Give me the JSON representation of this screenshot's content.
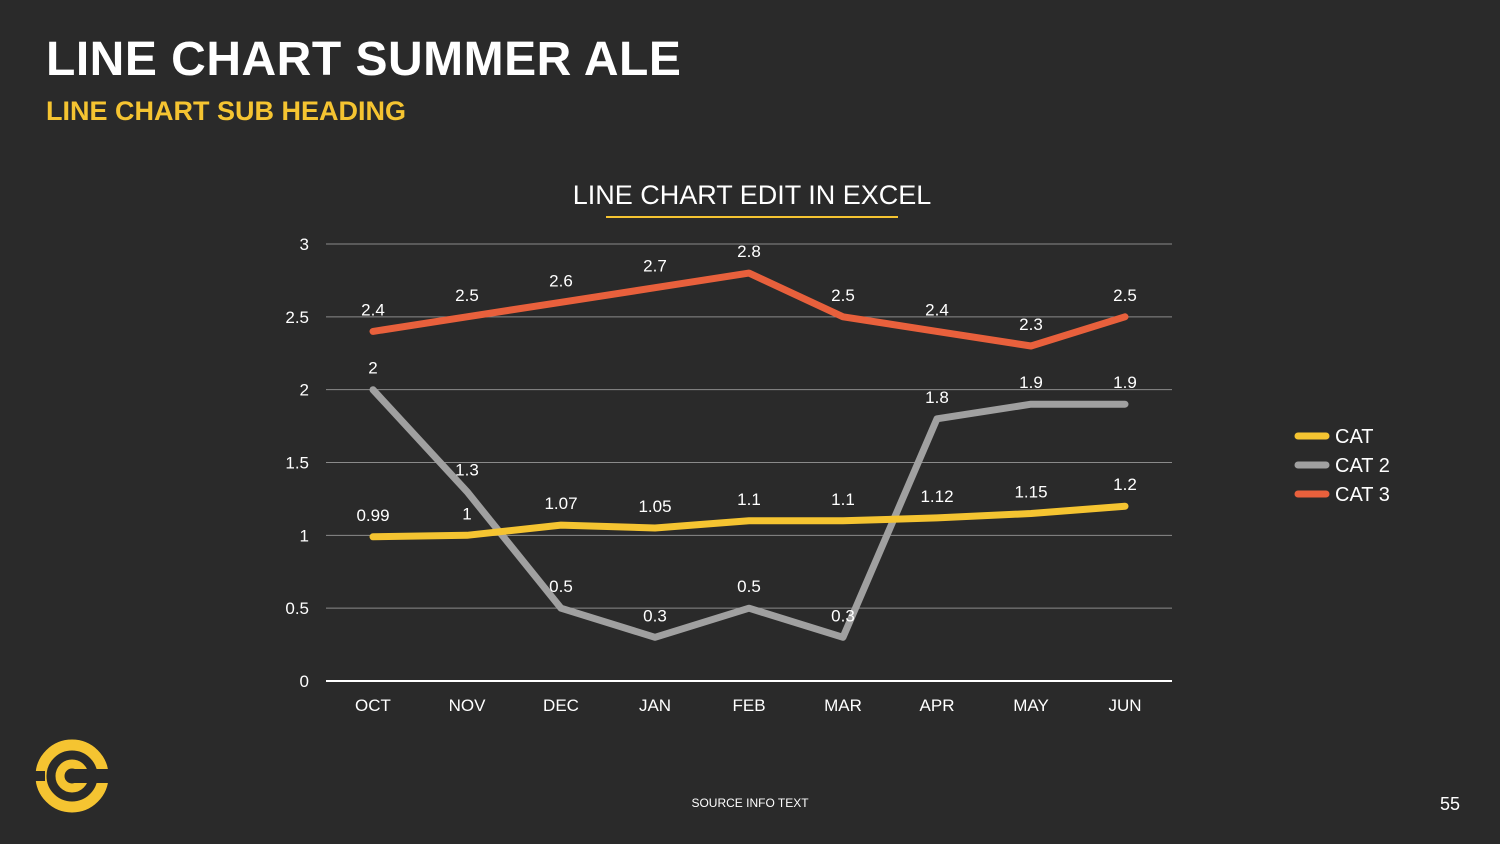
{
  "slide": {
    "title": "LINE CHART SUMMER ALE",
    "subtitle": "LINE CHART SUB HEADING",
    "source": "SOURCE INFO TEXT",
    "page_number": "55",
    "logo_icon": "comedy-central-logo-icon"
  },
  "colors": {
    "background": "#2a2a2a",
    "accent": "#f5c431",
    "cat": "#f5c431",
    "cat2": "#a0a0a0",
    "cat3": "#e8603c"
  },
  "chart_data": {
    "type": "line",
    "title": "LINE CHART EDIT IN EXCEL",
    "categories": [
      "OCT",
      "NOV",
      "DEC",
      "JAN",
      "FEB",
      "MAR",
      "APR",
      "MAY",
      "JUN"
    ],
    "series": [
      {
        "name": "CAT",
        "color": "#f5c431",
        "values": [
          0.99,
          1,
          1.07,
          1.05,
          1.1,
          1.1,
          1.12,
          1.15,
          1.2
        ]
      },
      {
        "name": "CAT 2",
        "color": "#a0a0a0",
        "values": [
          2,
          1.3,
          0.5,
          0.3,
          0.5,
          0.3,
          1.8,
          1.9,
          1.9
        ]
      },
      {
        "name": "CAT 3",
        "color": "#e8603c",
        "values": [
          2.4,
          2.5,
          2.6,
          2.7,
          2.8,
          2.5,
          2.4,
          2.3,
          2.5
        ]
      }
    ],
    "ylim": [
      0,
      3
    ],
    "yticks": [
      "0",
      "0.5",
      "1",
      "1.5",
      "2",
      "2.5",
      "3"
    ],
    "grid": true,
    "legend": "right",
    "data_labels": true
  }
}
